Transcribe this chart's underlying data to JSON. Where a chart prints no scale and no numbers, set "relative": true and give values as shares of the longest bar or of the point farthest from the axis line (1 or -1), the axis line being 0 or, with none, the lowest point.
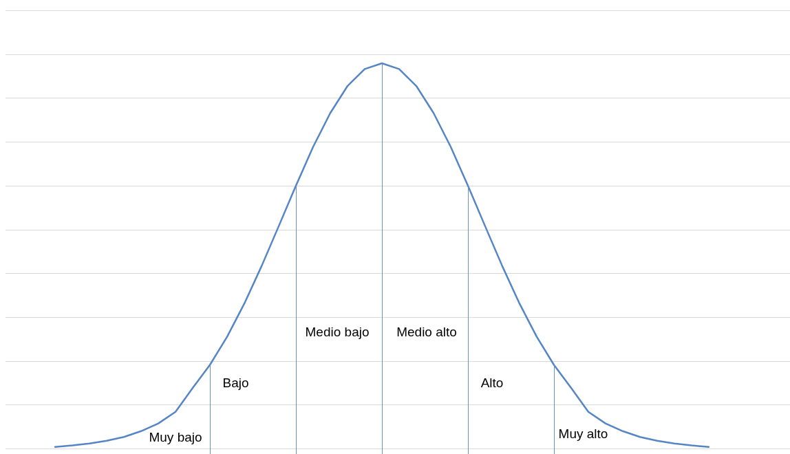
{
  "chart_data": {
    "type": "line",
    "relative": true,
    "grid": "y",
    "legend": false,
    "marker": "none",
    "line_style": "solid",
    "categories": [
      null,
      null,
      null,
      null,
      null,
      null,
      null,
      null,
      null,
      null,
      null,
      null,
      null,
      null,
      null,
      null,
      null,
      null,
      null,
      null,
      null,
      null,
      null,
      null,
      null,
      null,
      null,
      null,
      null,
      null,
      null,
      null,
      null,
      null,
      null,
      null,
      null,
      null,
      null
    ],
    "series": [
      {
        "color": "#5585c5",
        "values": [
          0.004,
          0.008,
          0.013,
          0.02,
          0.03,
          0.045,
          0.065,
          0.095,
          0.157,
          0.217,
          0.29,
          0.376,
          0.473,
          0.577,
          0.682,
          0.783,
          0.871,
          0.941,
          0.985,
          1,
          0.985,
          0.941,
          0.871,
          0.783,
          0.682,
          0.577,
          0.473,
          0.376,
          0.29,
          0.217,
          0.157,
          0.095,
          0.065,
          0.045,
          0.03,
          0.02,
          0.013,
          0.008,
          0.004
        ]
      }
    ],
    "annotations": [
      "Muy bajo",
      "Bajo",
      "Medio bajo",
      "Medio alto",
      "Alto",
      "Muy alto"
    ]
  }
}
